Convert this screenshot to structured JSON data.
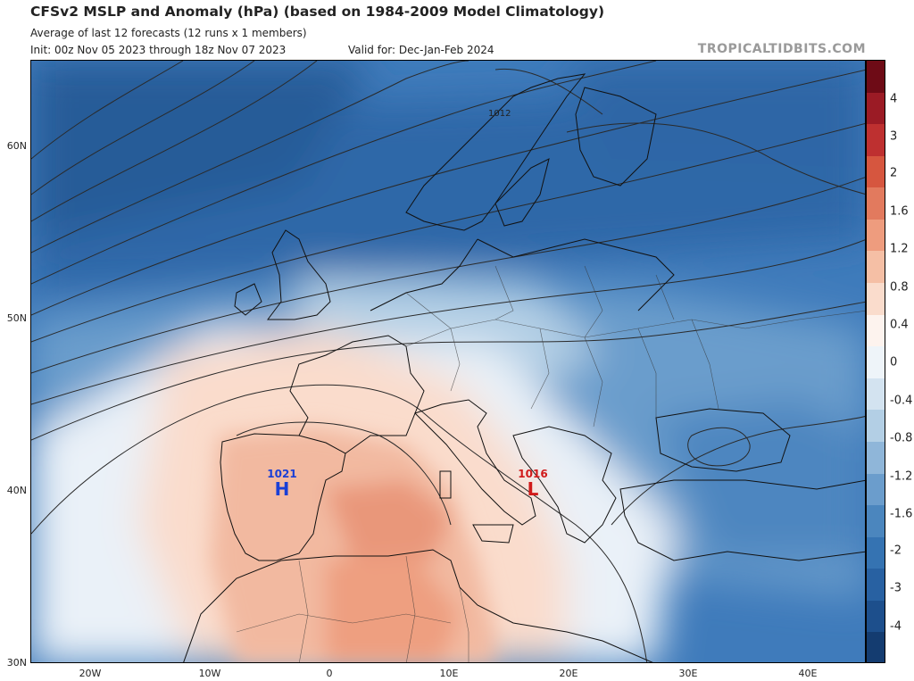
{
  "header": {
    "title": "CFSv2 MSLP and Anomaly (hPa) (based on 1984-2009 Model Climatology)",
    "subtitle": "Average of last 12 forecasts (12 runs x 1 members)",
    "init": "Init: 00z Nov 05 2023 through 18z Nov 07 2023",
    "valid": "Valid for: Dec-Jan-Feb 2024",
    "credit": "TROPICALTIDBITS.COM"
  },
  "map": {
    "lat_labels": [
      "60N",
      "50N",
      "40N",
      "30N"
    ],
    "lon_labels": [
      "20W",
      "10W",
      "0",
      "10E",
      "20E",
      "30E",
      "40E"
    ],
    "contour_label": "1012",
    "high": {
      "value": "1021",
      "letter": "H",
      "color": "#1a3fd6"
    },
    "low": {
      "value": "1016",
      "letter": "L",
      "color": "#d01a1a"
    }
  },
  "colorbar": {
    "labels": [
      "4",
      "3",
      "2",
      "1.6",
      "1.2",
      "0.8",
      "0.4",
      "0",
      "-0.4",
      "-0.8",
      "-1.2",
      "-1.6",
      "-2",
      "-3",
      "-4"
    ],
    "colors": [
      "#6e0b16",
      "#9b1b25",
      "#be3030",
      "#d6563f",
      "#e27a5e",
      "#ee9c7e",
      "#f5bfa5",
      "#fadccc",
      "#fdf3ee",
      "#eef4f9",
      "#d3e3f0",
      "#b3cfe5",
      "#8fb6d9",
      "#6b9dcc",
      "#4b86be",
      "#3573b2",
      "#2861a2",
      "#1d4f8c",
      "#143c70"
    ]
  }
}
